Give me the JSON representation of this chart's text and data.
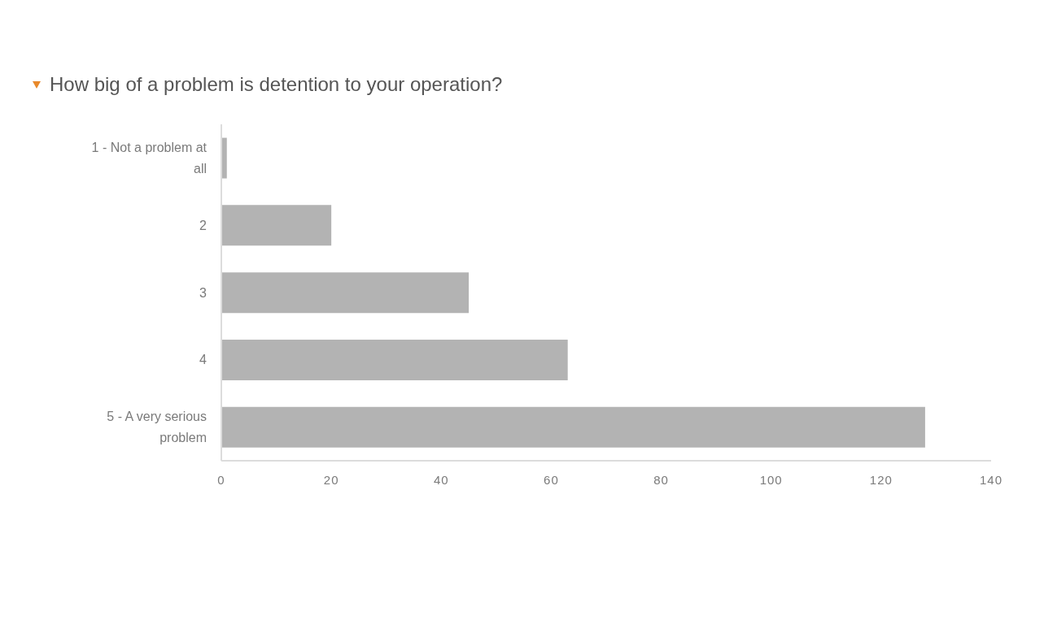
{
  "chart_data": {
    "type": "bar",
    "orientation": "horizontal",
    "title": "How big of a problem is detention to your operation?",
    "categories": [
      "1 - Not a problem at all",
      "2",
      "3",
      "4",
      "5 - A very serious problem"
    ],
    "values": [
      1,
      20,
      45,
      63,
      128
    ],
    "color": "#b3b3b3",
    "xlim": [
      0,
      140
    ],
    "xticks": [
      0,
      20,
      40,
      60,
      80,
      100,
      120,
      140
    ],
    "grid": false
  }
}
